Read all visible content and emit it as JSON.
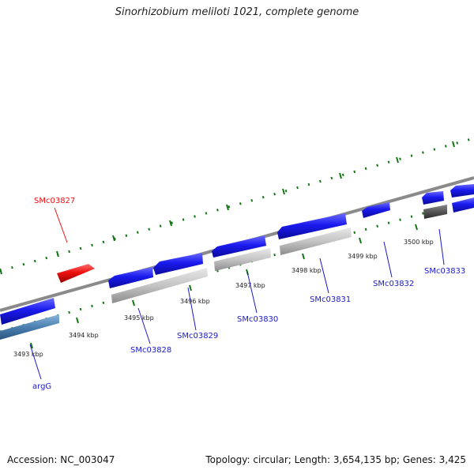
{
  "title": "Sinorhizobium meliloti 1021, complete genome",
  "footer": {
    "accession": "Accession: NC_003047",
    "topology": "Topology: circular; Length: 3,654,135 bp; Genes: 3,425"
  },
  "colors": {
    "gene_plus": "#1a1aee",
    "gene_minus_label": "#1a1acc",
    "highlight": "#ee1111",
    "cds_grey": "#c8c8c8",
    "cds_dark": "#555555",
    "cds_steel": "#4a7fb0",
    "backbone": "#8a8a8a",
    "ticks": "#117711"
  },
  "ruler": [
    "3493 kbp",
    "3494 kbp",
    "3495 kbp",
    "3496 kbp",
    "3497 kbp",
    "3498 kbp",
    "3499 kbp",
    "3500 kbp"
  ],
  "genes": [
    {
      "name": "argG",
      "kind": "minus"
    },
    {
      "name": "SMc03827",
      "kind": "highlight"
    },
    {
      "name": "SMc03828",
      "kind": "minus"
    },
    {
      "name": "SMc03829",
      "kind": "minus"
    },
    {
      "name": "SMc03830",
      "kind": "minus"
    },
    {
      "name": "SMc03831",
      "kind": "minus"
    },
    {
      "name": "SMc03832",
      "kind": "minus"
    },
    {
      "name": "SMc03833",
      "kind": "minus"
    }
  ]
}
